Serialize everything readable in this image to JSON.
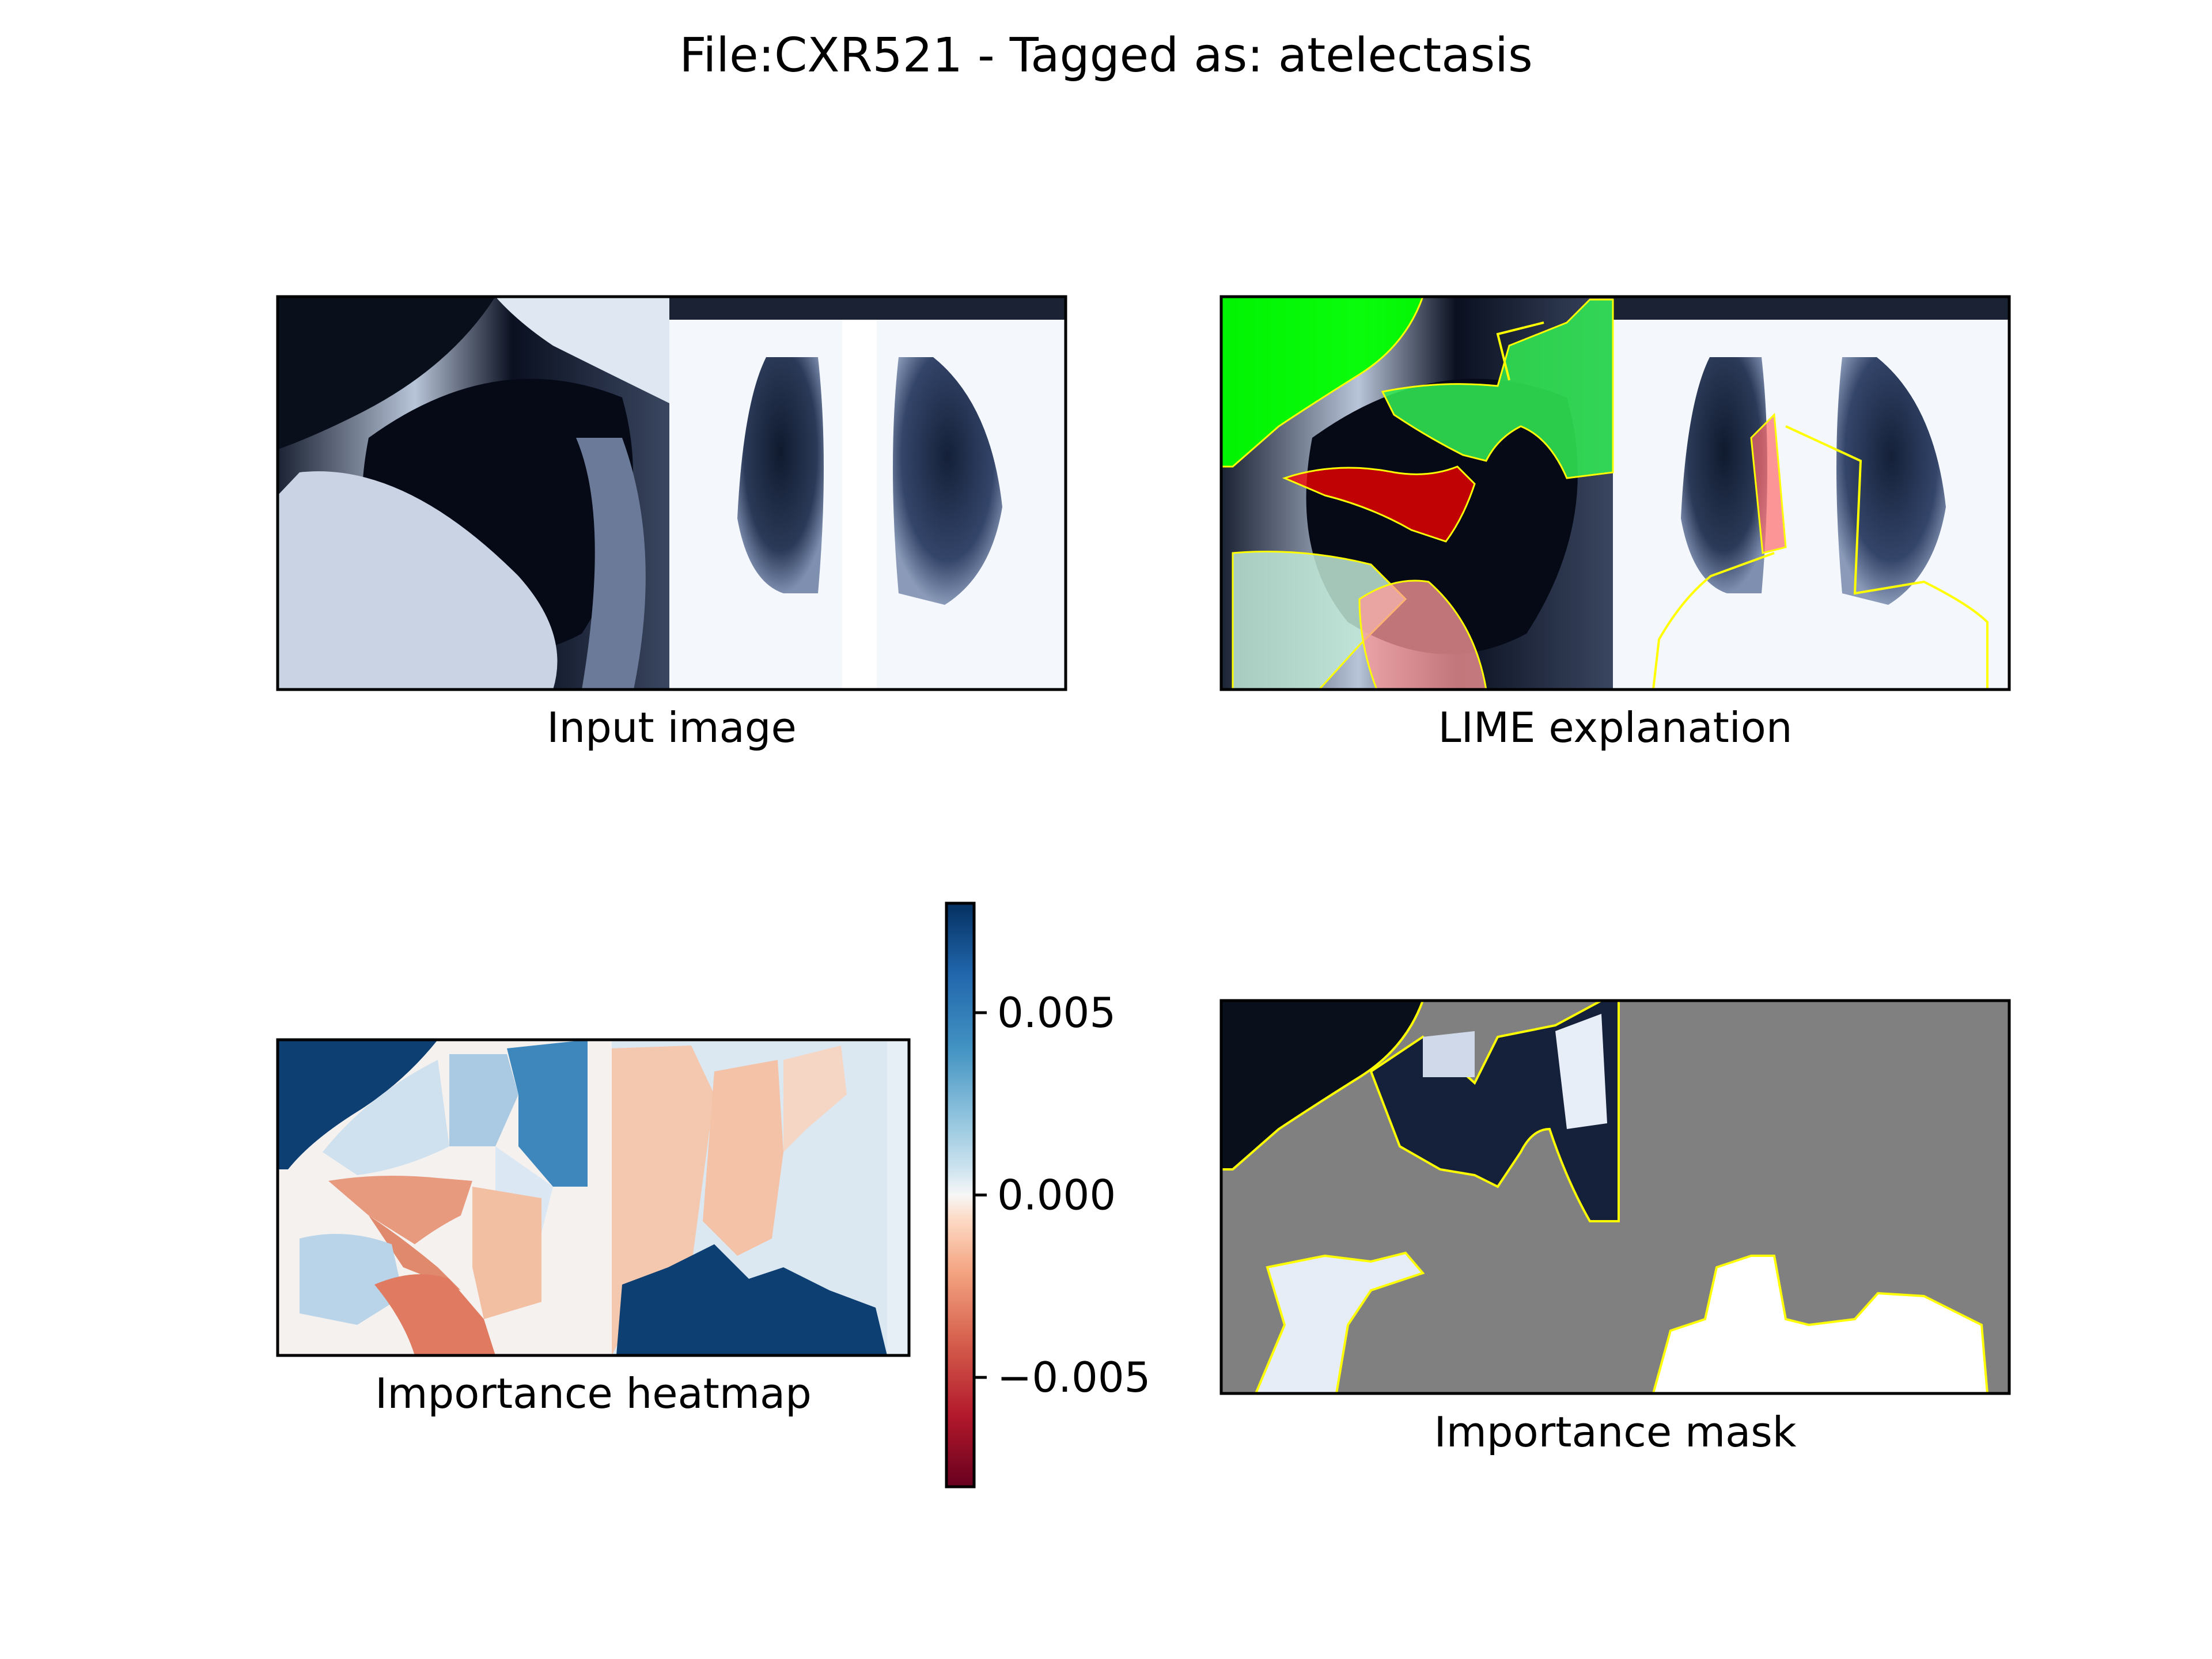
{
  "figure": {
    "title": "File:CXR521 - Tagged as: atelectasis"
  },
  "panels": {
    "input": {
      "label": "Input image"
    },
    "lime": {
      "label": "LIME explanation"
    },
    "heatmap": {
      "label": "Importance heatmap"
    },
    "mask": {
      "label": "Importance mask"
    }
  },
  "chart_data": {
    "type": "heatmap",
    "title": "File:CXR521 - Tagged as: atelectasis",
    "colorbar": {
      "colormap": "RdBu",
      "range": [
        -0.008,
        0.008
      ],
      "ticks": [
        0.005,
        0.0,
        -0.005
      ],
      "tick_labels": [
        "0.005",
        "0.000",
        "−0.005"
      ]
    },
    "colors": {
      "positive_strong": "#0d3f73",
      "positive_mid": "#3e87bd",
      "positive_light": "#aac9e2",
      "neutral": "#f4f1ef",
      "negative_light": "#f2c1a4",
      "negative_mid": "#e68468",
      "negative_strong": "#c0232e",
      "lime_positive": "#00ff00",
      "lime_negative": "#ff0000",
      "boundary": "#ffff00",
      "mask_background": "#808080"
    }
  }
}
